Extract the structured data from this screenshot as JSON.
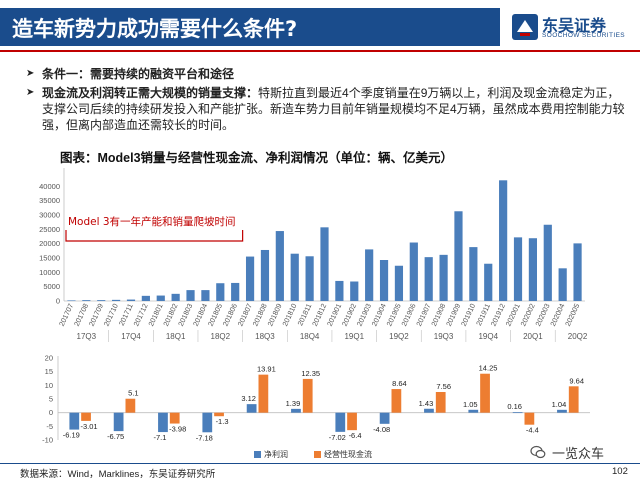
{
  "header": {
    "title": "造车新势力成功需要什么条件?",
    "logo": {
      "name": "东吴证券",
      "en": "SOOCHOW SECURITIES",
      "sub": "东吴证券研究所"
    }
  },
  "bullets": [
    {
      "label": "条件一：需要持续的融资平台和途径",
      "text": ""
    },
    {
      "label": "现金流及利润转正需大规模的销量支撑：",
      "text": "特斯拉直到最近4个季度销量在9万辆以上，利润及现金流稳定为正，支撑公司后续的持续研发投入和产能扩张。新造车势力目前年销量规模均不足4万辆，虽然成本费用控制能力较强，但离内部造血还需较长的时间。"
    }
  ],
  "figure_title": "图表：Model3销量与经营性现金流、净利润情况（单位：辆、亿美元）",
  "annotation": "Model 3有一年产能和销量爬坡时间",
  "legend": {
    "net_profit": "净利润",
    "op_cash_flow": "经营性现金流"
  },
  "colors": {
    "title_bar": "#1a4c8c",
    "header_line": "#c00000",
    "bar_blue": "#4a7ebb",
    "bar_orange": "#ed7d31",
    "annotation": "#c00000"
  },
  "chart_data": [
    {
      "type": "bar",
      "title": "",
      "ylim": [
        0,
        45000
      ],
      "yticks": [
        0,
        5000,
        10000,
        15000,
        20000,
        25000,
        30000,
        35000,
        40000
      ],
      "categories": [
        "201707",
        "201708",
        "201709",
        "201710",
        "201711",
        "201712",
        "201801",
        "201802",
        "201803",
        "201804",
        "201805",
        "201806",
        "201807",
        "201808",
        "201809",
        "201810",
        "201811",
        "201812",
        "201901",
        "201902",
        "201903",
        "201904",
        "201905",
        "201906",
        "201907",
        "201908",
        "201909",
        "201910",
        "201911",
        "201912",
        "202001",
        "202002",
        "202003",
        "202004",
        "202005"
      ],
      "values": [
        200,
        300,
        300,
        400,
        500,
        1800,
        1900,
        2500,
        3800,
        3800,
        6200,
        6300,
        15500,
        17800,
        24400,
        16500,
        15600,
        25700,
        7000,
        6800,
        18000,
        14300,
        12300,
        20400,
        15300,
        16100,
        31300,
        18800,
        13000,
        42100,
        22200,
        21900,
        26600,
        11400,
        20100
      ],
      "quarter_labels": [
        "17Q3",
        "17Q4",
        "18Q1",
        "18Q2",
        "18Q3",
        "18Q4",
        "19Q1",
        "19Q2",
        "19Q3",
        "19Q4",
        "20Q1",
        "20Q2"
      ],
      "legend": "none",
      "grid": false
    },
    {
      "type": "bar",
      "title": "",
      "ylim": [
        -10,
        20
      ],
      "yticks": [
        -10,
        -5,
        0,
        5,
        10,
        15,
        20
      ],
      "categories": [
        "17Q3",
        "17Q4",
        "18Q1",
        "18Q2",
        "18Q3",
        "18Q4",
        "19Q1",
        "19Q2",
        "19Q3",
        "19Q4",
        "20Q1",
        "20Q2"
      ],
      "series": [
        {
          "name": "净利润",
          "values": [
            -6.19,
            -6.75,
            -7.1,
            -7.18,
            3.12,
            1.39,
            -7.02,
            -4.08,
            1.43,
            1.05,
            0.16,
            1.04
          ]
        },
        {
          "name": "经营性现金流",
          "values": [
            -3.01,
            5.1,
            -3.98,
            -1.3,
            13.91,
            12.35,
            -6.4,
            8.64,
            7.56,
            14.25,
            -4.4,
            9.64
          ]
        }
      ],
      "data_labels": {
        "net_profit": [
          "-6.19",
          "-6.75",
          "-7.1",
          "-7.18",
          "3.12",
          "1.39",
          "-7.02",
          "-4.08",
          "1.43",
          "1.05",
          "0.16",
          "1.04"
        ],
        "op_cash_flow": [
          "-3.01",
          "5.1",
          "-3.98",
          "-1.3",
          "13.91",
          "12.35",
          "-6.4",
          "8.64",
          "7.56",
          "14.25",
          "-4.4",
          "9.64"
        ]
      },
      "legend": "bottom",
      "grid": false
    }
  ],
  "footer": {
    "source": "数据来源：Wind，Marklines，东吴证券研究所",
    "page": "102",
    "watermark": "一览众车"
  }
}
